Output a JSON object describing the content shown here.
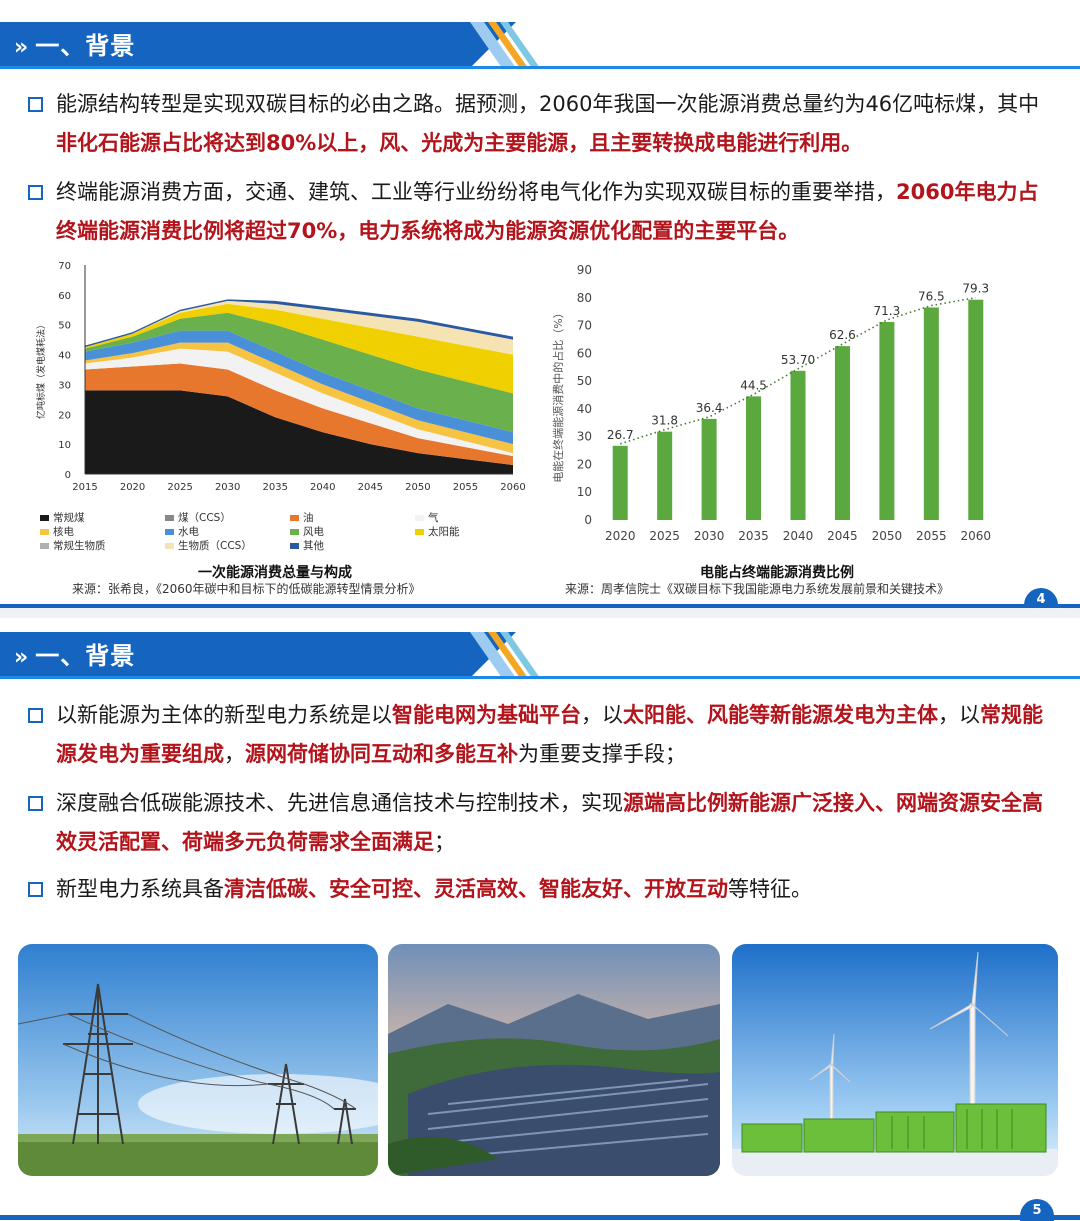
{
  "slide1": {
    "header": {
      "chevron": "»",
      "title": "一、背景"
    },
    "bullets": [
      {
        "parts": [
          {
            "text": "能源结构转型是实现双碳目标的必由之路。据预测，2060年我国一次能源消费总量约为46亿吨标煤，其中",
            "red": false
          },
          {
            "text": "非化石能源占比将达到80%以上，风、光成为主要能源，且主要转换成电能进行利用。",
            "red": true
          }
        ]
      },
      {
        "parts": [
          {
            "text": "终端能源消费方面，交通、建筑、工业等行业纷纷将电气化作为实现双碳目标的重要举措，",
            "red": false
          },
          {
            "text": "2060年电力占终端能源消费比例将超过70%，电力系统将成为能源资源优化配置的主要平台。",
            "red": true
          }
        ]
      }
    ],
    "area_chart": {
      "title": "一次能源消费总量与构成",
      "source": "来源：张希良，《2060年碳中和目标下的低碳能源转型情景分析》",
      "ylabel": "亿吨标煤（发电煤耗法）",
      "legend": [
        {
          "label": "常规煤",
          "color": "#1a1a1a"
        },
        {
          "label": "煤（CCS）",
          "color": "#888888"
        },
        {
          "label": "油",
          "color": "#e8772e"
        },
        {
          "label": "气",
          "color": "#f2f2f2"
        },
        {
          "label": "核电",
          "color": "#f6c343"
        },
        {
          "label": "水电",
          "color": "#4a90d9"
        },
        {
          "label": "风电",
          "color": "#6ab04c"
        },
        {
          "label": "太阳能",
          "color": "#f0d000"
        },
        {
          "label": "常规生物质",
          "color": "#b0b0b0"
        },
        {
          "label": "生物质（CCS）",
          "color": "#f6e3b4"
        },
        {
          "label": "其他",
          "color": "#2c5aa0"
        }
      ]
    },
    "bar_chart": {
      "title": "电能占终端能源消费比例",
      "source": "来源：周孝信院士《双碳目标下我国能源电力系统发展前景和关键技术》",
      "ylabel": "电能在终端能源消费中的占比（%）",
      "bar_color": "#5aa83e"
    },
    "page_number": "4"
  },
  "slide2": {
    "header": {
      "chevron": "»",
      "title": "一、背景"
    },
    "bullets": [
      {
        "parts": [
          {
            "text": "以新能源为主体的新型电力系统是以",
            "red": false
          },
          {
            "text": "智能电网为基础平台",
            "red": true
          },
          {
            "text": "，以",
            "red": false
          },
          {
            "text": "太阳能、风能等新能源发电为主体",
            "red": true
          },
          {
            "text": "，以",
            "red": false
          },
          {
            "text": "常规能源发电为重要组成",
            "red": true
          },
          {
            "text": "，",
            "red": false
          },
          {
            "text": "源网荷储协同互动和多能互补",
            "red": true
          },
          {
            "text": "为重要支撑手段；",
            "red": false
          }
        ]
      },
      {
        "parts": [
          {
            "text": "深度融合低碳能源技术、先进信息通信技术与控制技术，实现",
            "red": false
          },
          {
            "text": "源端高比例新能源广泛接入、网端资源安全高效灵活配置、荷端多元负荷需求全面满足",
            "red": true
          },
          {
            "text": "；",
            "red": false
          }
        ]
      },
      {
        "parts": [
          {
            "text": "新型电力系统具备",
            "red": false
          },
          {
            "text": "清洁低碳、安全可控、灵活高效、智能友好、开放互动",
            "red": true
          },
          {
            "text": "等特征。",
            "red": false
          }
        ]
      }
    ],
    "photos": [
      "power-transmission-towers",
      "mountain-solar-farm",
      "wind-turbine-energy-storage"
    ],
    "page_number": "5"
  },
  "chart_data": [
    {
      "type": "area",
      "title": "一次能源消费总量与构成",
      "ylabel": "亿吨标煤（发电煤耗法）",
      "x": [
        2015,
        2020,
        2025,
        2030,
        2035,
        2040,
        2045,
        2050,
        2055,
        2060
      ],
      "ylim": [
        0,
        70
      ],
      "yticks": [
        0,
        10,
        20,
        30,
        40,
        50,
        60,
        70
      ],
      "series": [
        {
          "name": "常规煤",
          "values": [
            28,
            28,
            28,
            26,
            19,
            14,
            10,
            7,
            5,
            3
          ]
        },
        {
          "name": "油",
          "values": [
            7,
            8,
            9,
            9,
            9,
            8,
            7,
            5,
            4,
            3
          ]
        },
        {
          "name": "气",
          "values": [
            2,
            3,
            5,
            6,
            6,
            5,
            4,
            3,
            2,
            1
          ]
        },
        {
          "name": "核电",
          "values": [
            1,
            1.5,
            2,
            3,
            3,
            3,
            3,
            3,
            3,
            3
          ]
        },
        {
          "name": "水电",
          "values": [
            3,
            3.5,
            4,
            4,
            4,
            4,
            4,
            4,
            4,
            4
          ]
        },
        {
          "name": "风电",
          "values": [
            1,
            2,
            4,
            6,
            9,
            11,
            12,
            13,
            13,
            13
          ]
        },
        {
          "name": "太阳能",
          "values": [
            0.5,
            1,
            2,
            3,
            5,
            7,
            9,
            11,
            12,
            13
          ]
        },
        {
          "name": "生物质（CCS）",
          "values": [
            0,
            0,
            0.5,
            1,
            2,
            3,
            4,
            5,
            5,
            5
          ]
        },
        {
          "name": "其他",
          "values": [
            0.5,
            0.5,
            0.5,
            0.5,
            1,
            1,
            1,
            1,
            1,
            1
          ]
        }
      ]
    },
    {
      "type": "bar",
      "title": "电能占终端能源消费比例",
      "ylabel": "电能在终端能源消费中的占比（%）",
      "categories": [
        "2020",
        "2025",
        "2030",
        "2035",
        "2040",
        "2045",
        "2050",
        "2055",
        "2060"
      ],
      "values": [
        26.7,
        31.8,
        36.4,
        44.5,
        53.7,
        62.6,
        71.3,
        76.5,
        79.3
      ],
      "value_labels": [
        "26.7",
        "31.8",
        "36.4",
        "44.5",
        "53.70",
        "62.6",
        "71.3",
        "76.5",
        "79.3"
      ],
      "ylim": [
        0,
        90
      ],
      "yticks": [
        0,
        10,
        20,
        30,
        40,
        50,
        60,
        70,
        80,
        90
      ],
      "trendline": "dotted"
    }
  ]
}
